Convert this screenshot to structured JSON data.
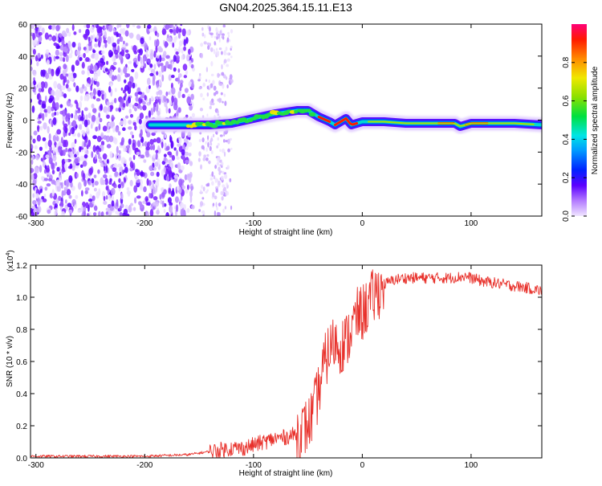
{
  "title": "GN04.2025.364.15.11.E13",
  "chart_data": [
    {
      "type": "heatmap",
      "name": "spectrogram",
      "xlabel": "Height of straight line (km)",
      "ylabel": "Frequency (Hz)",
      "xlim": [
        -305,
        165
      ],
      "ylim": [
        -60,
        60
      ],
      "xticks": [
        -300,
        -200,
        -100,
        0,
        100
      ],
      "yticks": [
        -60,
        -40,
        -20,
        0,
        20,
        40,
        60
      ],
      "ridge": {
        "x": [
          -195,
          -180,
          -160,
          -140,
          -120,
          -100,
          -80,
          -60,
          -50,
          -40,
          -30,
          -25,
          -20,
          -15,
          -10,
          -5,
          0,
          20,
          40,
          60,
          75,
          85,
          90,
          100,
          120,
          140,
          165
        ],
        "freq": [
          -3,
          -3,
          -3,
          -3,
          -2,
          1,
          4,
          6,
          6,
          2,
          -1,
          -3,
          -1,
          1,
          -3,
          -2,
          -1,
          -1,
          -2,
          -2,
          -2,
          -2,
          -4,
          -2,
          -2,
          -2,
          -3
        ]
      },
      "noise_region_x": [
        -305,
        -155
      ],
      "sparse_noise_x": [
        -150,
        -120
      ],
      "colorbar": {
        "label": "Normalized spectral amplitude",
        "range": [
          0.0,
          1.0
        ],
        "ticks": [
          0.0,
          0.2,
          0.4,
          0.6,
          0.8
        ],
        "tick_labels": [
          "0.0",
          "0.2",
          "0.4",
          "0.6",
          "0.8"
        ]
      }
    },
    {
      "type": "line",
      "name": "snr",
      "xlabel": "Height of straight line (km)",
      "ylabel": "SNR (10 * v/v)",
      "scale_label": "(x10",
      "scale_exponent": "4",
      "scale_close": ")",
      "xlim": [
        -305,
        165
      ],
      "ylim": [
        0.0,
        1.2
      ],
      "xticks": [
        -300,
        -200,
        -100,
        0,
        100
      ],
      "yticks": [
        0.0,
        0.2,
        0.4,
        0.6,
        0.8,
        1.0,
        1.2
      ],
      "ytick_labels": [
        "0.0",
        "0.2",
        "0.4",
        "0.6",
        "0.8",
        "1.0",
        "1.2"
      ],
      "series": [
        {
          "name": "SNR",
          "color": "#e8302a",
          "x": [
            -305,
            -250,
            -200,
            -160,
            -140,
            -130,
            -120,
            -110,
            -100,
            -90,
            -80,
            -70,
            -60,
            -50,
            -45,
            -40,
            -35,
            -30,
            -25,
            -20,
            -15,
            -10,
            -5,
            0,
            10,
            20,
            30,
            40,
            60,
            80,
            95,
            110,
            130,
            150,
            165
          ],
          "y": [
            0.01,
            0.01,
            0.01,
            0.02,
            0.04,
            0.05,
            0.06,
            0.06,
            0.08,
            0.1,
            0.12,
            0.13,
            0.15,
            0.2,
            0.28,
            0.42,
            0.58,
            0.68,
            0.72,
            0.7,
            0.72,
            0.8,
            0.88,
            0.9,
            1.0,
            1.08,
            1.11,
            1.12,
            1.12,
            1.12,
            1.13,
            1.1,
            1.08,
            1.06,
            1.04
          ]
        }
      ]
    }
  ]
}
